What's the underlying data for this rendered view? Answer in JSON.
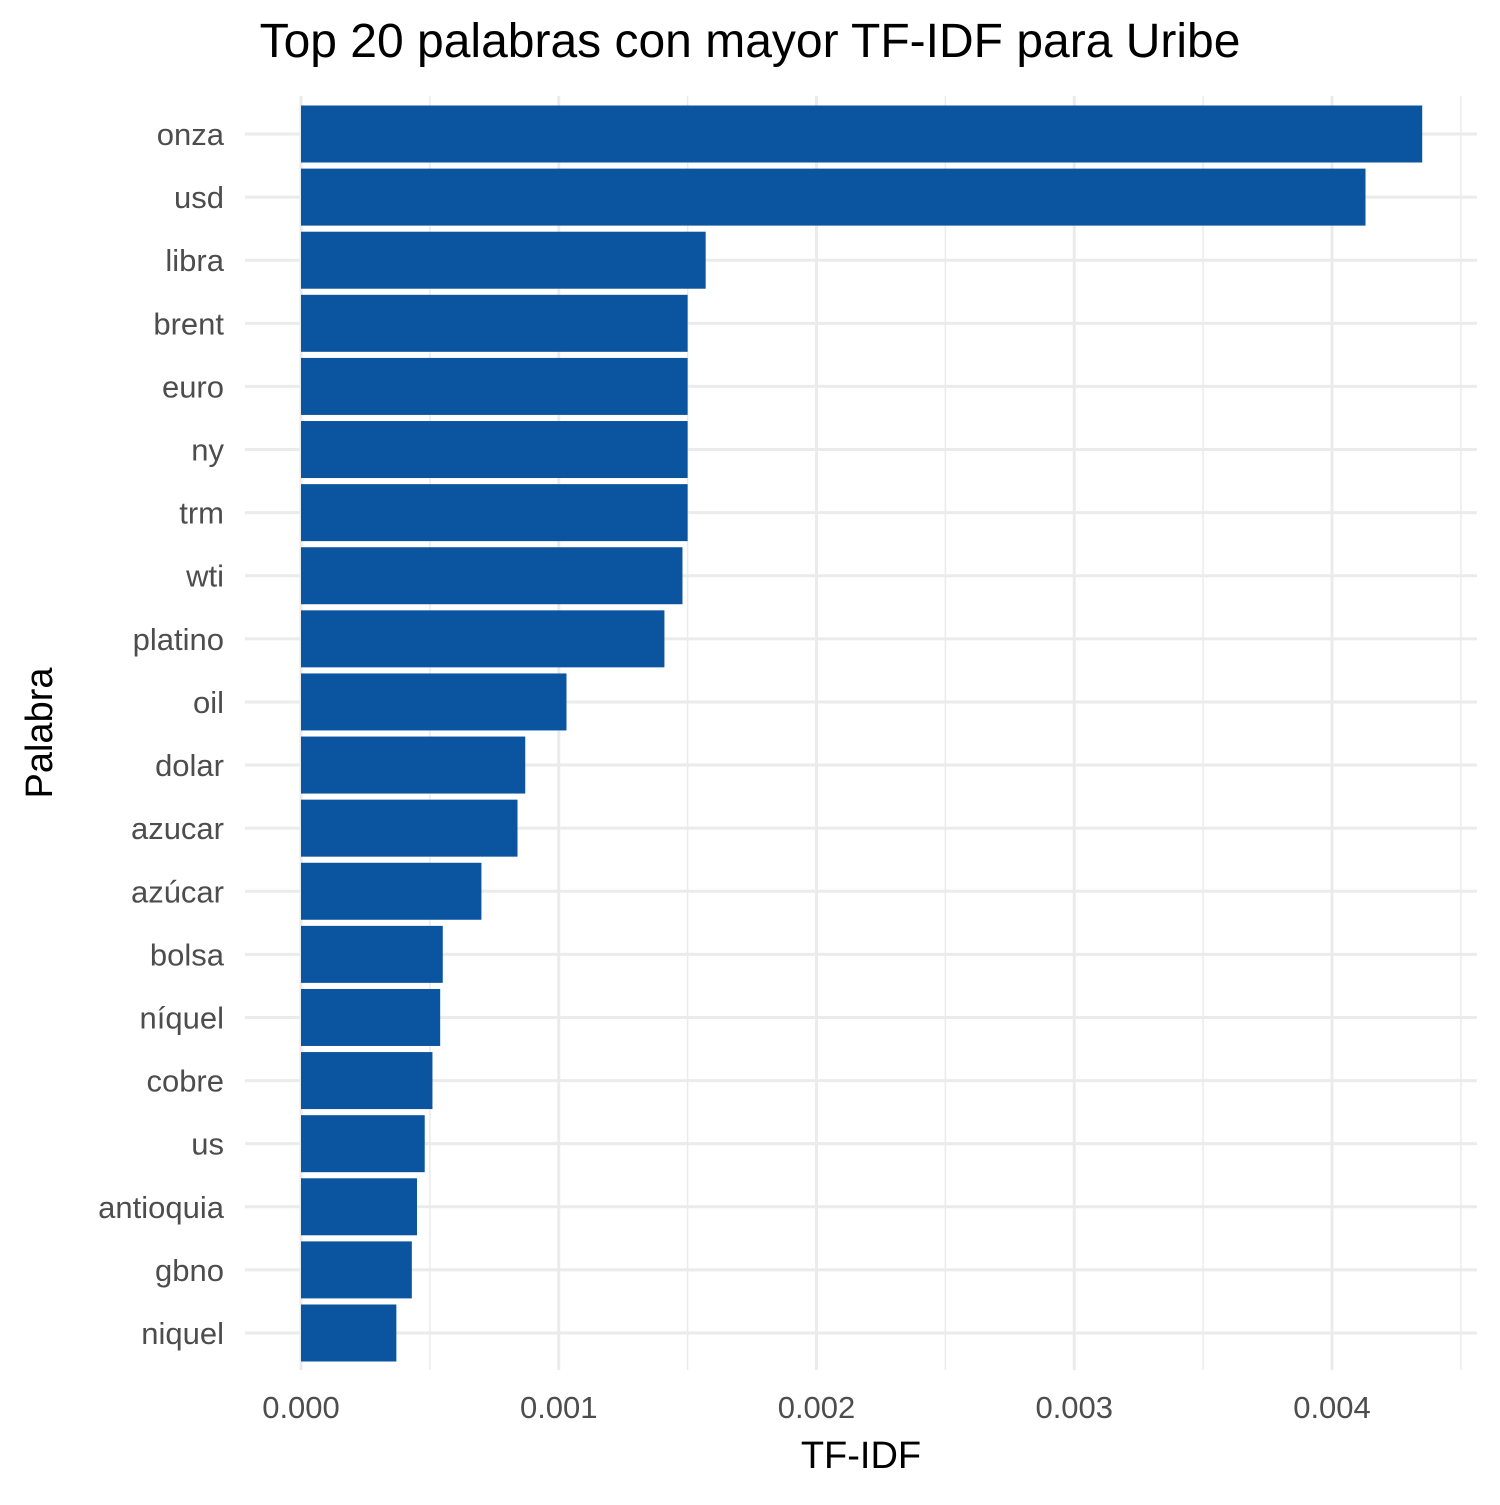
{
  "chart_data": {
    "type": "bar",
    "orientation": "horizontal",
    "title": "Top 20 palabras con mayor TF-IDF para Uribe",
    "xlabel": "TF-IDF",
    "ylabel": "Palabra",
    "categories": [
      "onza",
      "usd",
      "libra",
      "brent",
      "euro",
      "ny",
      "trm",
      "wti",
      "platino",
      "oil",
      "dolar",
      "azucar",
      "azúcar",
      "bolsa",
      "níquel",
      "cobre",
      "us",
      "antioquia",
      "gbno",
      "niquel"
    ],
    "values": [
      0.00435,
      0.00413,
      0.00157,
      0.0015,
      0.0015,
      0.0015,
      0.0015,
      0.00148,
      0.00141,
      0.00103,
      0.00087,
      0.00084,
      0.0007,
      0.00055,
      0.00054,
      0.00051,
      0.00048,
      0.00045,
      0.00043,
      0.00037
    ],
    "xlim": [
      -0.00021,
      0.00456
    ],
    "xticks": [
      0,
      0.001,
      0.002,
      0.003,
      0.004
    ],
    "xtick_labels": [
      "0.000",
      "0.001",
      "0.002",
      "0.003",
      "0.004"
    ],
    "bar_color": "#0A54A0",
    "grid": true,
    "legend": "none"
  }
}
